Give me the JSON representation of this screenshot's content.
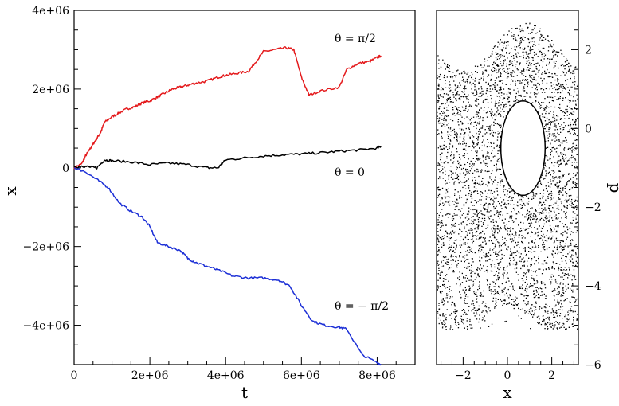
{
  "chart_data": [
    {
      "type": "line",
      "xlabel": "t",
      "ylabel": "x",
      "xlim": [
        0,
        9000000
      ],
      "ylim": [
        -5000000,
        4000000
      ],
      "x_ticks": [
        "0",
        "2e+06",
        "4e+06",
        "6e+06",
        "8e+06"
      ],
      "x_tick_values": [
        0,
        2000000,
        4000000,
        6000000,
        8000000
      ],
      "y_ticks": [
        "4e+06",
        "2e+06",
        "0",
        "−2e+06",
        "−4e+06"
      ],
      "y_tick_values": [
        4000000,
        2000000,
        0,
        -2000000,
        -4000000
      ],
      "grid": false,
      "series": [
        {
          "name": "θ = π/2",
          "color": "#e41a1c",
          "x": [
            0,
            200000,
            300000,
            400000,
            500000,
            600000,
            700000,
            800000,
            1000000,
            1200000,
            1400000,
            1600000,
            1800000,
            2000000,
            2200000,
            2400000,
            2600000,
            2800000,
            3000000,
            3200000,
            3500000,
            3800000,
            4000000,
            4300000,
            4600000,
            4800000,
            5000000,
            5300000,
            5600000,
            5800000,
            6000000,
            6200000,
            6500000,
            7000000,
            7200000,
            7500000,
            7800000,
            8000000,
            8100000
          ],
          "y": [
            0,
            100000,
            300000,
            450000,
            600000,
            750000,
            900000,
            1150000,
            1300000,
            1400000,
            1500000,
            1550000,
            1650000,
            1700000,
            1800000,
            1900000,
            2000000,
            2050000,
            2100000,
            2150000,
            2200000,
            2300000,
            2350000,
            2400000,
            2450000,
            2700000,
            2950000,
            3000000,
            3050000,
            3000000,
            2300000,
            1850000,
            1950000,
            2050000,
            2500000,
            2650000,
            2700000,
            2800000,
            2850000
          ]
        },
        {
          "name": "θ = 0",
          "color": "#000000",
          "x": [
            0,
            200000,
            400000,
            600000,
            800000,
            1000000,
            1500000,
            2000000,
            2500000,
            3000000,
            3500000,
            3800000,
            4000000,
            4500000,
            5000000,
            5500000,
            6000000,
            6500000,
            7000000,
            7500000,
            8000000,
            8100000
          ],
          "y": [
            0,
            50000,
            20000,
            0,
            200000,
            180000,
            150000,
            80000,
            120000,
            80000,
            0,
            0,
            200000,
            250000,
            300000,
            330000,
            350000,
            380000,
            420000,
            450000,
            500000,
            550000
          ],
          "markers": [
            800000,
            2700000,
            3800000
          ]
        },
        {
          "name": "θ = −π/2",
          "color": "#1c2fd6",
          "x": [
            0,
            300000,
            600000,
            900000,
            1200000,
            1500000,
            1800000,
            2000000,
            2200000,
            2500000,
            2800000,
            3000000,
            3200000,
            3500000,
            3800000,
            4200000,
            4600000,
            5000000,
            5400000,
            5700000,
            6000000,
            6300000,
            6600000,
            7000000,
            7200000,
            7600000,
            8000000,
            8100000
          ],
          "y": [
            0,
            -100000,
            -300000,
            -500000,
            -900000,
            -1100000,
            -1250000,
            -1500000,
            -1900000,
            -2000000,
            -2100000,
            -2300000,
            -2400000,
            -2500000,
            -2600000,
            -2750000,
            -2800000,
            -2800000,
            -2850000,
            -3000000,
            -3500000,
            -3900000,
            -4000000,
            -4050000,
            -4100000,
            -4750000,
            -4950000,
            -5000000
          ]
        }
      ],
      "annotations": [
        "θ =  π/2",
        "θ = 0",
        "θ = − π/2"
      ]
    },
    {
      "type": "scatter",
      "xlabel": "x",
      "ylabel": "p",
      "xlim": [
        -3.2,
        3.2
      ],
      "ylim": [
        -6,
        3
      ],
      "x_ticks": [
        "−2",
        "0",
        "2"
      ],
      "x_tick_values": [
        -2,
        0,
        2
      ],
      "y_ticks": [
        "2",
        "0",
        "−2",
        "−4",
        "−6"
      ],
      "y_tick_values": [
        2,
        0,
        -2,
        -4,
        -6
      ],
      "point_color": "#000000",
      "island": {
        "description_x": [
          -0.3,
          1.7
        ],
        "description_p": [
          -1.7,
          0.7
        ]
      }
    }
  ],
  "icons": {}
}
